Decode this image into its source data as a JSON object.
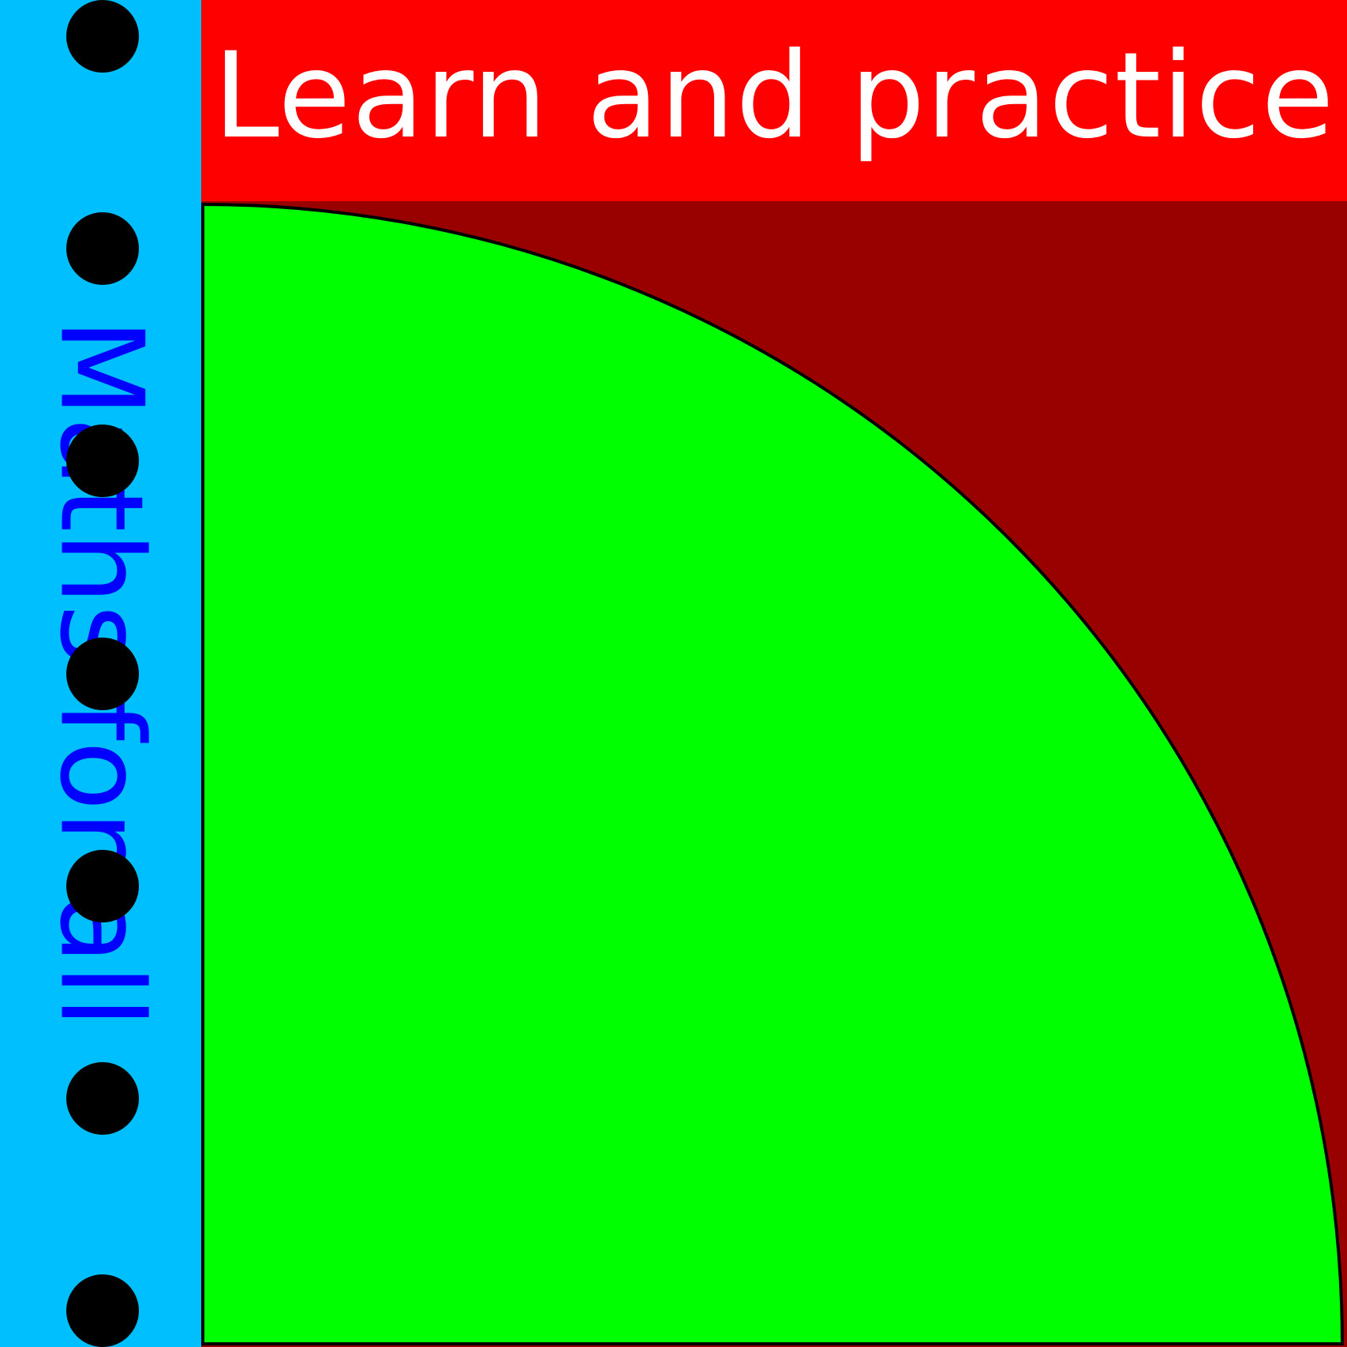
{
  "header": {
    "title": "Learn and practice"
  },
  "sidebar": {
    "label": "Maths for all",
    "binder_holes": 7
  },
  "colors": {
    "sidebar_background": "#00BFFF",
    "sidebar_text": "#0000FF",
    "binder_hole": "#000000",
    "header_background": "#FF0000",
    "header_text": "#FFFFFF",
    "canvas_background": "#990000",
    "quarter_circle_fill": "#00FF00",
    "quarter_circle_outline": "#000000"
  },
  "illustration": {
    "shape": "quarter-circle"
  }
}
